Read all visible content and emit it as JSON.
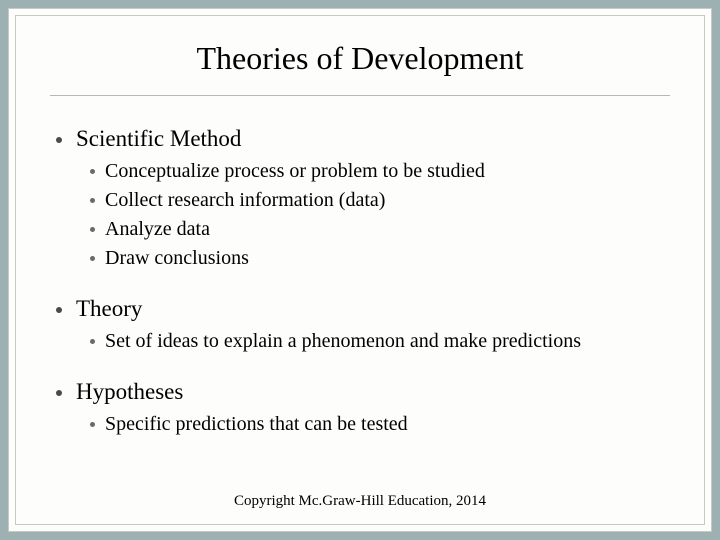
{
  "colors": {
    "background": "#9db0b2",
    "panel": "#fdfdfb",
    "border": "#c9c9c4",
    "text": "#000000",
    "bullet": "#4a4a4a",
    "subbullet": "#6a6a6a",
    "rule": "#b8b8b0"
  },
  "typography": {
    "title_fontsize": 32,
    "lvl1_fontsize": 23,
    "lvl2_fontsize": 20,
    "footer_fontsize": 15,
    "font_family": "Times New Roman"
  },
  "title": "Theories of Development",
  "sections": [
    {
      "label": "Scientific Method",
      "items": [
        "Conceptualize process or problem to be studied",
        "Collect research information (data)",
        "Analyze data",
        "Draw conclusions"
      ]
    },
    {
      "label": "Theory",
      "items": [
        "Set of ideas to explain a phenomenon and make predictions"
      ]
    },
    {
      "label": "Hypotheses",
      "items": [
        "Specific predictions that can be tested"
      ]
    }
  ],
  "footer": "Copyright Mc.Graw-Hill Education, 2014"
}
